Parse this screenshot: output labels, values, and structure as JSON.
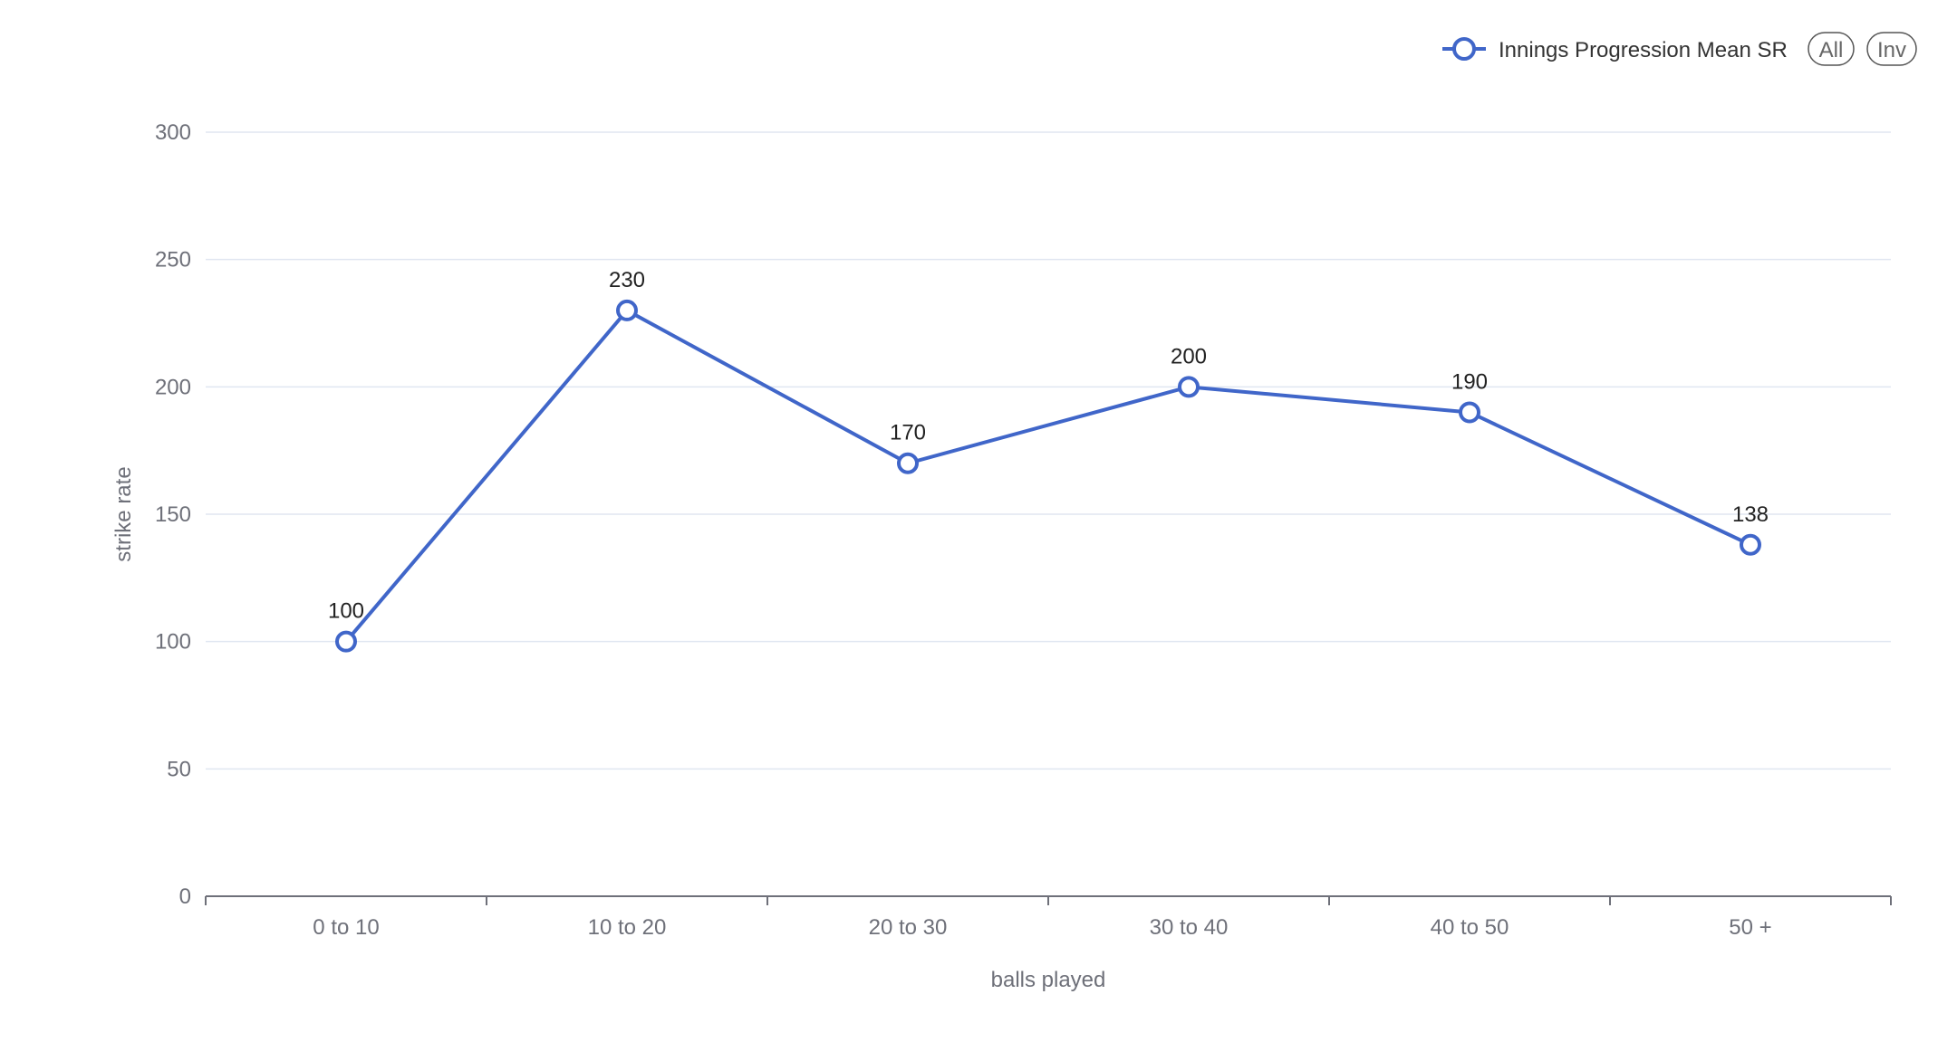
{
  "chart_data": {
    "type": "line",
    "categories": [
      "0 to 10",
      "10 to 20",
      "20 to 30",
      "30 to 40",
      "40 to 50",
      "50 +"
    ],
    "series": [
      {
        "name": "Innings Progression Mean SR",
        "values": [
          100,
          230,
          170,
          200,
          190,
          138
        ],
        "data_labels": [
          "100",
          "230",
          "170",
          "200",
          "190",
          "138"
        ]
      }
    ],
    "xlabel": "balls played",
    "ylabel": "strike rate",
    "ylim": [
      0,
      300
    ],
    "yticks": [
      0,
      50,
      100,
      150,
      200,
      250,
      300
    ],
    "ytick_labels": [
      "0",
      "50",
      "100",
      "150",
      "200",
      "250",
      "300"
    ],
    "grid": true,
    "legend_position": "top-right",
    "colors": {
      "series": "#4066c9",
      "grid": "#e0e6f1",
      "axis": "#6e7079"
    }
  },
  "legend": {
    "label": "Innings Progression Mean SR",
    "all_button": "All",
    "inv_button": "Inv"
  }
}
